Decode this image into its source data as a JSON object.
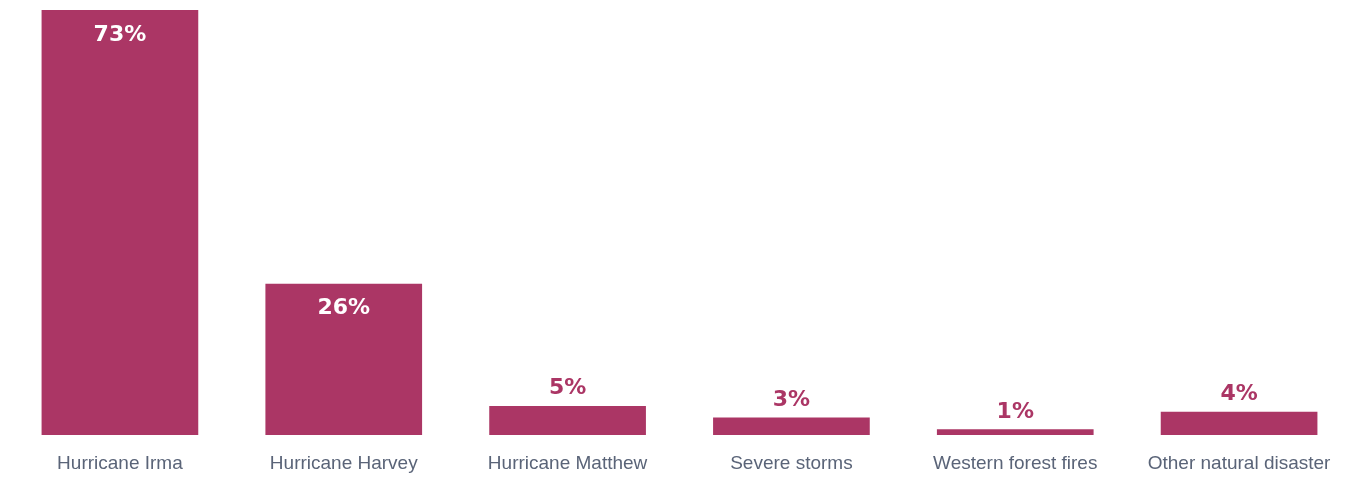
{
  "chart_data": {
    "type": "bar",
    "categories": [
      "Hurricane Irma",
      "Hurricane Harvey",
      "Hurricane Matthew",
      "Severe storms",
      "Western forest fires",
      "Other natural disaster"
    ],
    "values": [
      73,
      26,
      5,
      3,
      1,
      4
    ],
    "value_labels": [
      "73%",
      "26%",
      "5%",
      "3%",
      "1%",
      "4%"
    ],
    "color": "#ab3665"
  }
}
